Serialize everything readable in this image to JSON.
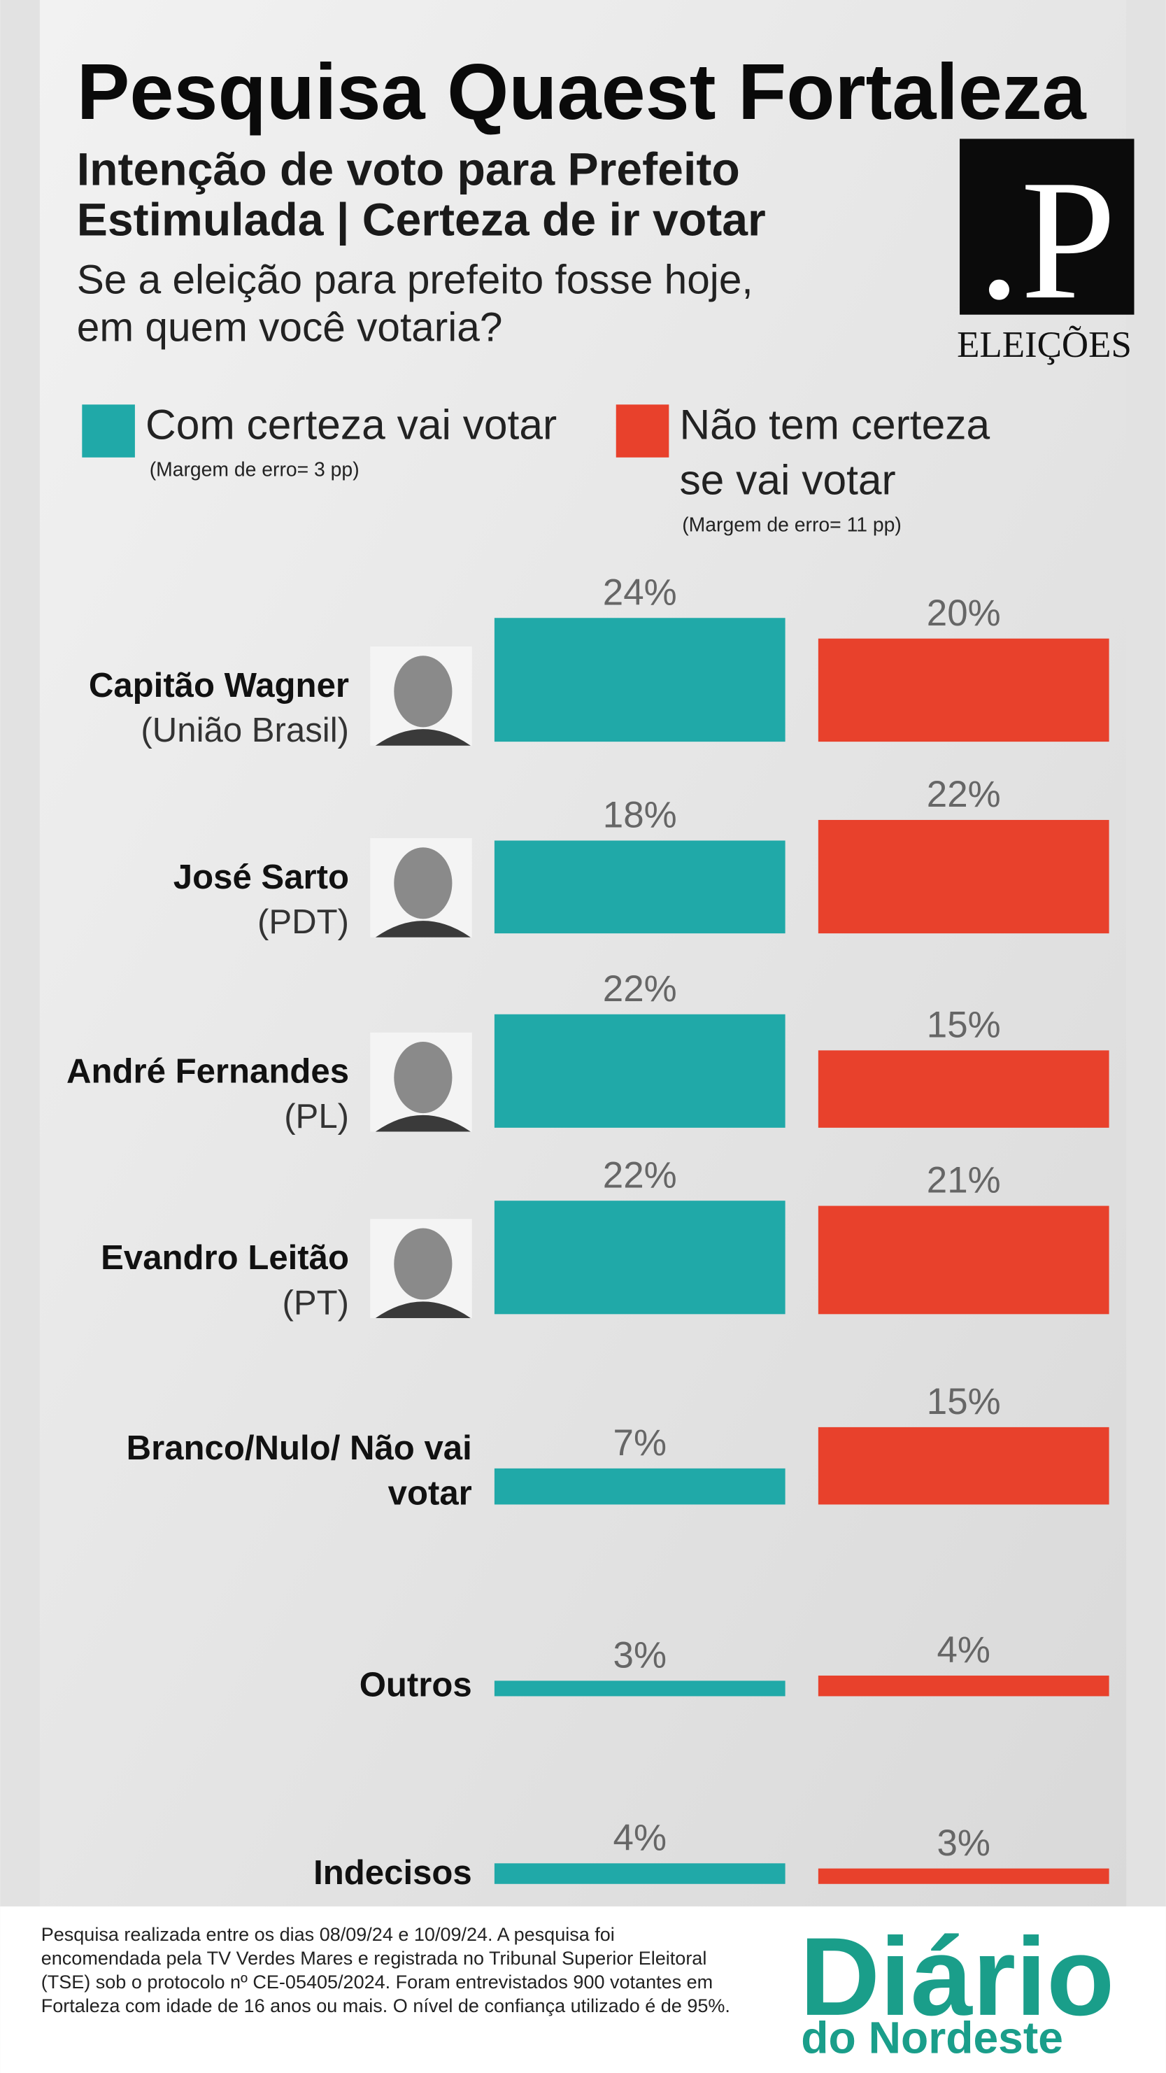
{
  "title": "Pesquisa Quaest Fortaleza",
  "subtitle_lines": [
    "Intenção de voto para Prefeito",
    "Estimulada | Certeza de ir votar"
  ],
  "question_lines": [
    "Se a eleição para prefeito fosse hoje,",
    "em quem você votaria?"
  ],
  "logo": {
    "mark": ".P",
    "label": "ELEIÇÕES"
  },
  "chart_data": {
    "type": "bar",
    "categories": [
      "Capitão Wagner",
      "José Sarto",
      "André Fernandes",
      "Evandro Leitão",
      "Branco/Nulo/ Não vai votar",
      "Outros",
      "Indecisos"
    ],
    "parties": [
      "(União Brasil)",
      "(PDT)",
      "(PL)",
      "(PT)",
      null,
      null,
      null
    ],
    "series": [
      {
        "name": "Com certeza vai votar",
        "note": "(Margem de erro= 3 pp)",
        "color": "#20a9a8",
        "values": [
          24,
          18,
          22,
          22,
          7,
          3,
          4
        ],
        "value_labels": [
          "24%",
          "18%",
          "22%",
          "22%",
          "7%",
          "3%",
          "4%"
        ]
      },
      {
        "name": "Não tem certeza se vai votar",
        "note": "(Margem de erro= 11 pp)",
        "color": "#e8412c",
        "values": [
          20,
          22,
          15,
          21,
          15,
          4,
          3
        ],
        "value_labels": [
          "20%",
          "22%",
          "15%",
          "21%",
          "15%",
          "4%",
          "3%"
        ]
      }
    ]
  },
  "footer_lines": [
    "Pesquisa realizada entre os dias 08/09/24 e  10/09/24. A pesquisa foi",
    "encomendada pela TV Verdes Mares e registrada no Tribunal Superior Eleitoral",
    "(TSE) sob o protocolo nº CE-05405/2024. Foram entrevistados 900 votantes em",
    "Fortaleza com idade de 16 anos ou mais. O nível de confiança utilizado é de 95%."
  ],
  "brand": {
    "name": "Diário",
    "sub": "do Nordeste"
  }
}
